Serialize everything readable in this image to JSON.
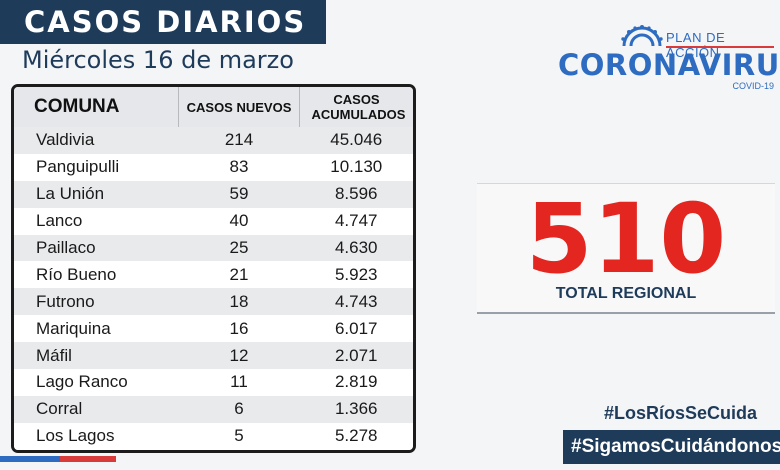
{
  "header": {
    "title": "CASOS DIARIOS",
    "date": "Miércoles 16 de marzo"
  },
  "table": {
    "headers": [
      "COMUNA",
      "CASOS NUEVOS",
      "CASOS ACUMULADOS"
    ],
    "rows": [
      {
        "comuna": "Valdivia",
        "nuevos": "214",
        "acumulados": "45.046"
      },
      {
        "comuna": "Panguipulli",
        "nuevos": "83",
        "acumulados": "10.130"
      },
      {
        "comuna": "La Unión",
        "nuevos": "59",
        "acumulados": "8.596"
      },
      {
        "comuna": "Lanco",
        "nuevos": "40",
        "acumulados": "4.747"
      },
      {
        "comuna": "Paillaco",
        "nuevos": "25",
        "acumulados": "4.630"
      },
      {
        "comuna": "Río Bueno",
        "nuevos": "21",
        "acumulados": "5.923"
      },
      {
        "comuna": "Futrono",
        "nuevos": "18",
        "acumulados": "4.743"
      },
      {
        "comuna": "Mariquina",
        "nuevos": "16",
        "acumulados": "6.017"
      },
      {
        "comuna": "Máfil",
        "nuevos": "12",
        "acumulados": "2.071"
      },
      {
        "comuna": "Lago Ranco",
        "nuevos": "11",
        "acumulados": "2.819"
      },
      {
        "comuna": "Corral",
        "nuevos": "6",
        "acumulados": "1.366"
      },
      {
        "comuna": "Los Lagos",
        "nuevos": "5",
        "acumulados": "5.278"
      }
    ]
  },
  "logo": {
    "plan": "PLAN DE ACCIÓN",
    "name": "CORONAVIRUS",
    "sub": "COVID-19"
  },
  "total": {
    "value": "510",
    "label": "TOTAL REGIONAL"
  },
  "hashtags": {
    "first": "#LosRíosSeCuida",
    "second": "#SigamosCuidándonos"
  },
  "colors": {
    "navy": "#1f3b5a",
    "brand_blue": "#2d6cc0",
    "red": "#e3261f"
  }
}
